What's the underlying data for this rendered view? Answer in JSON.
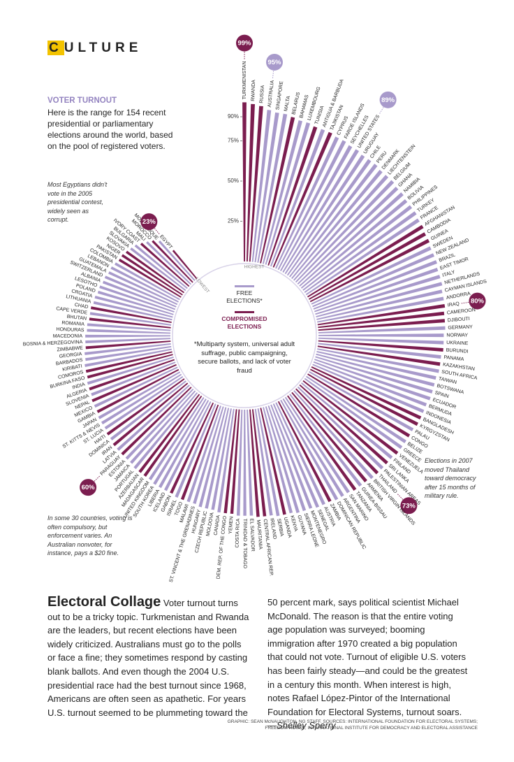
{
  "header": {
    "section": "CULTURE"
  },
  "chart_data": {
    "type": "radial_bar",
    "title": "VOTER TURNOUT",
    "subtitle": "Here is the range for 154 recent presidential or parliamentary elections around the world, based on the pool of registered voters.",
    "categories": [
      "TURKMENISTAN",
      "RWANDA",
      "RUSSIA",
      "AUSTRALIA",
      "SINGAPORE",
      "MALTA",
      "BELARUS",
      "BAHAMAS",
      "LUXEMBOURG",
      "TUNISIA",
      "ANTIGUA & BARBUDA",
      "TAJIKISTAN",
      "CYPRUS",
      "FAROE ISLANDS",
      "SEYCHELLES",
      "UNITED STATES",
      "URUGUAY",
      "CHILE",
      "PERU",
      "DENMARK",
      "LIECHTENSTEIN",
      "BELGIUM",
      "GHANA",
      "NAMIBIA",
      "BOLIVIA",
      "PHILIPPINES",
      "TURKEY",
      "FRANCE",
      "AFGHANISTAN",
      "CAMBODIA",
      "GUINEA",
      "SWEDEN",
      "NEW ZEALAND",
      "BRAZIL",
      "EAST TIMOR",
      "ITALY",
      "NETHERLANDS",
      "CAYMAN ISLANDS",
      "ANDORRA",
      "IRAQ",
      "CAMEROON",
      "DJIBOUTI",
      "GERMANY",
      "NORWAY",
      "UKRAINE",
      "BURUNDI",
      "PANAMA",
      "KAZAKHSTAN",
      "SOUTH AFRICA",
      "TAIWAN",
      "BOTSWANA",
      "SPAIN",
      "ECUADOR",
      "BERMUDA",
      "INDONESIA",
      "BANGLADESH",
      "KYRGYZSTAN",
      "PALAU",
      "CONGO",
      "BELIZE",
      "GREECE",
      "VENEZUELA",
      "FINLAND",
      "SRI LANKA",
      "PALESTINIAN AREAS",
      "THAILAND",
      "BRITISH VIRGIN ISLANDS",
      "ARMENIA",
      "GUINEA-BISSAU",
      "TANZANIA",
      "SAN MARINO",
      "ARGENTINA",
      "DOMINICAN REPUBLIC",
      "ZAMBIA",
      "AUSTRIA",
      "SENEGAL",
      "MONTENEGRO",
      "SIERRA LEONE",
      "GUYANA",
      "KENYA",
      "UGANDA",
      "SERBIA",
      "IRELAND",
      "CENTRAL AFRICAN REP.",
      "MAURITANIA",
      "EL SALVADOR",
      "TRINIDAD & TOBAGO",
      "COSTA RICA",
      "YEMEN",
      "DEM. REP. OF THE CONGO",
      "CANADA",
      "MOLDOVA",
      "CZECH REPUBLIC",
      "HUNGARY",
      "ST. VINCENT & THE GRENADINES",
      "MALAWI",
      "TOGO",
      "ISRAEL",
      "GABON",
      "ICELAND",
      "LIBERIA",
      "SOUTH KOREA",
      "UNITED KINGDOM",
      "MADAGASCAR",
      "AZERBAIJAN",
      "PORTUGAL",
      "JAMAICA",
      "ESTONIA",
      "PARAGUAY",
      "LATVIA",
      "IRAN",
      "DOMINICA",
      "HAITI",
      "ST. LUCIA",
      "ST. KITTS & NEVIS",
      "JAPAN",
      "GAMBIA",
      "MEXICO",
      "NEPAL",
      "SLOVENIA",
      "ALGERIA",
      "INDIA",
      "BURKINA FASO",
      "COMOROS",
      "KIRIBATI",
      "BARBADOS",
      "GEORGIA",
      "ZIMBABWE",
      "BOSNIA & HERZEGOVINA",
      "MACEDONIA",
      "HONDURAS",
      "ROMANIA",
      "BHUTAN",
      "CAPE VERDE",
      "CHAD",
      "LITHUANIA",
      "CROATIA",
      "POLAND",
      "LESOTHO",
      "ALBANIA",
      "SWITZERLAND",
      "GUATEMALA",
      "LEBANON",
      "COLOMBIA",
      "PAKISTAN",
      "NIGER",
      "KOSOVO",
      "SLOVAKIA",
      "BULGARIA",
      "IVORY COAST",
      "MALI",
      "MOROCCO",
      "MOZAMBIQUE",
      "EGYPT"
    ],
    "values": [
      99,
      98,
      97,
      95,
      94,
      94,
      93,
      92,
      92,
      91,
      91,
      91,
      90,
      90,
      89,
      89,
      88,
      88,
      88,
      87,
      87,
      87,
      86,
      86,
      85,
      85,
      85,
      84,
      84,
      83,
      83,
      82,
      82,
      82,
      81,
      81,
      81,
      80,
      80,
      80,
      79,
      79,
      79,
      78,
      78,
      78,
      77,
      77,
      77,
      76,
      76,
      76,
      76,
      75,
      75,
      75,
      75,
      74,
      74,
      74,
      74,
      74,
      73,
      73,
      73,
      73,
      73,
      72,
      72,
      72,
      71,
      71,
      71,
      70,
      70,
      70,
      69,
      69,
      69,
      68,
      68,
      68,
      67,
      67,
      67,
      66,
      66,
      66,
      65,
      65,
      65,
      64,
      64,
      64,
      63,
      63,
      63,
      63,
      62,
      62,
      62,
      62,
      61,
      61,
      61,
      61,
      60,
      60,
      60,
      60,
      60,
      59,
      59,
      58,
      58,
      58,
      57,
      57,
      57,
      56,
      56,
      56,
      55,
      55,
      55,
      54,
      54,
      53,
      53,
      53,
      52,
      52,
      51,
      51,
      51,
      50,
      50,
      49,
      49,
      48,
      48,
      47,
      47,
      46,
      45,
      45,
      44,
      43,
      42,
      40,
      38,
      36,
      33,
      23
    ],
    "value_labels": [
      "99%",
      null,
      null,
      "95%",
      null,
      null,
      null,
      null,
      null,
      null,
      null,
      null,
      null,
      null,
      null,
      "89%",
      null,
      null,
      null,
      null,
      null,
      null,
      null,
      null,
      null,
      null,
      null,
      null,
      null,
      null,
      null,
      null,
      null,
      null,
      null,
      null,
      null,
      null,
      null,
      "80%",
      null,
      null,
      null,
      null,
      null,
      null,
      null,
      null,
      null,
      null,
      null,
      null,
      null,
      null,
      null,
      null,
      null,
      null,
      null,
      null,
      null,
      null,
      null,
      null,
      null,
      "73%",
      null,
      null,
      null,
      null,
      null,
      null,
      null,
      null,
      null,
      null,
      null,
      null,
      null,
      null,
      null,
      null,
      null,
      null,
      null,
      null,
      null,
      null,
      null,
      null,
      null,
      null,
      null,
      null,
      null,
      null,
      null,
      null,
      null,
      null,
      null,
      null,
      null,
      null,
      null,
      null,
      null,
      null,
      "60%",
      null,
      null,
      null,
      null,
      null,
      null,
      null,
      null,
      null,
      null,
      null,
      null,
      null,
      null,
      null,
      null,
      null,
      null,
      null,
      null,
      null,
      null,
      null,
      null,
      null,
      null,
      null,
      null,
      null,
      null,
      null,
      null,
      null,
      null,
      null,
      null,
      null,
      null,
      null,
      null,
      null,
      null,
      null,
      null,
      "23%"
    ],
    "colors": [
      "#7b1d4f",
      "#7b1d4f",
      "#7b1d4f",
      "#a89acb",
      "#a89acb",
      "#a89acb",
      "#7b1d4f",
      "#a89acb",
      "#a89acb",
      "#7b1d4f",
      "#a89acb",
      "#7b1d4f",
      "#a89acb",
      "#a89acb",
      "#a89acb",
      "#a89acb",
      "#a89acb",
      "#a89acb",
      "#a89acb",
      "#a89acb",
      "#a89acb",
      "#a89acb",
      "#a89acb",
      "#a89acb",
      "#a89acb",
      "#a89acb",
      "#a89acb",
      "#a89acb",
      "#7b1d4f",
      "#7b1d4f",
      "#7b1d4f",
      "#a89acb",
      "#a89acb",
      "#a89acb",
      "#a89acb",
      "#a89acb",
      "#a89acb",
      "#a89acb",
      "#a89acb",
      "#7b1d4f",
      "#7b1d4f",
      "#7b1d4f",
      "#a89acb",
      "#a89acb",
      "#a89acb",
      "#7b1d4f",
      "#a89acb",
      "#7b1d4f",
      "#a89acb",
      "#a89acb",
      "#a89acb",
      "#a89acb",
      "#a89acb",
      "#a89acb",
      "#a89acb",
      "#7b1d4f",
      "#7b1d4f",
      "#a89acb",
      "#7b1d4f",
      "#a89acb",
      "#a89acb",
      "#7b1d4f",
      "#a89acb",
      "#7b1d4f",
      "#a89acb",
      "#7b1d4f",
      "#a89acb",
      "#7b1d4f",
      "#a89acb",
      "#7b1d4f",
      "#a89acb",
      "#a89acb",
      "#a89acb",
      "#7b1d4f",
      "#a89acb",
      "#a89acb",
      "#a89acb",
      "#a89acb",
      "#a89acb",
      "#a89acb",
      "#7b1d4f",
      "#a89acb",
      "#a89acb",
      "#7b1d4f",
      "#7b1d4f",
      "#a89acb",
      "#a89acb",
      "#a89acb",
      "#7b1d4f",
      "#7b1d4f",
      "#a89acb",
      "#a89acb",
      "#a89acb",
      "#a89acb",
      "#a89acb",
      "#a89acb",
      "#7b1d4f",
      "#a89acb",
      "#7b1d4f",
      "#a89acb",
      "#a89acb",
      "#a89acb",
      "#a89acb",
      "#7b1d4f",
      "#7b1d4f",
      "#a89acb",
      "#a89acb",
      "#a89acb",
      "#7b1d4f",
      "#a89acb",
      "#7b1d4f",
      "#a89acb",
      "#7b1d4f",
      "#a89acb",
      "#a89acb",
      "#a89acb",
      "#7b1d4f",
      "#a89acb",
      "#7b1d4f",
      "#a89acb",
      "#7b1d4f",
      "#a89acb",
      "#7b1d4f",
      "#7b1d4f",
      "#a89acb",
      "#a89acb",
      "#a89acb",
      "#7b1d4f",
      "#a89acb",
      "#a89acb",
      "#a89acb",
      "#a89acb",
      "#7b1d4f",
      "#a89acb",
      "#7b1d4f",
      "#a89acb",
      "#a89acb",
      "#a89acb",
      "#a89acb",
      "#a89acb",
      "#a89acb",
      "#a89acb",
      "#a89acb",
      "#a89acb",
      "#7b1d4f",
      "#7b1d4f",
      "#7b1d4f",
      "#a89acb",
      "#a89acb",
      "#7b1d4f",
      "#a89acb",
      "#7b1d4f",
      "#a89acb",
      "#7b1d4f"
    ],
    "legend": [
      {
        "name": "FREE ELECTIONS*",
        "color": "#a89acb"
      },
      {
        "name": "COMPROMISED ELECTIONS",
        "color": "#7b1d4f"
      }
    ],
    "footnote": "*Multiparty system, universal adult suffrage, public campaigning, secure ballots, and lack of voter fraud",
    "end_labels": [
      "HIGHEST",
      "LOWEST"
    ],
    "rlim": [
      0,
      100
    ],
    "rticks": [
      {
        "value": 25,
        "label": "25%"
      },
      {
        "value": 50,
        "label": "50%"
      },
      {
        "value": 75,
        "label": "75%"
      },
      {
        "value": 90,
        "label": "90%"
      }
    ],
    "annotations": [
      "Most Egyptians didn't vote in the 2005 presidential contest, widely seen as corrupt.",
      "Elections in 2007 moved Thailand toward democracy after 15 months of military rule.",
      "In some 30 countries, voting is often compulsory, but enforcement varies. An Australian nonvoter, for instance, pays a $20 fine."
    ]
  },
  "article": {
    "headline": "Electoral Collage",
    "body": "Voter turnout turns out to be a tricky topic. Turkmenistan and Rwanda are the leaders, but recent elections have been widely criticized. Australians must go to the polls or face a fine; they sometimes respond by casting blank ballots. And even though the 2004 U.S. presidential race had the best turnout since 1968, Americans are often seen as apathetic. For years U.S. turnout seemed to be plummeting toward the 50 percent mark, says political scientist Michael McDonald. The reason is that the entire voting age population was surveyed; booming immigration after 1970 created a big population that could not vote. Turnout of eligible U.S. voters has been fairly steady—and could be the greatest in a century this month. When interest is high, notes Rafael López-Pintor of the International Foundation for Electoral Systems, turnout soars.",
    "byline": "—Shelley Sperry"
  },
  "credits": [
    "GRAPHIC: SEAN McNAUGHTON, NG STAFF. SOURCES: INTERNATIONAL FOUNDATION FOR ELECTORAL SYSTEMS;",
    "FREEDOM HOUSE; INTERNATIONAL INSTITUTE FOR DEMOCRACY AND ELECTORAL ASSISTANCE"
  ]
}
